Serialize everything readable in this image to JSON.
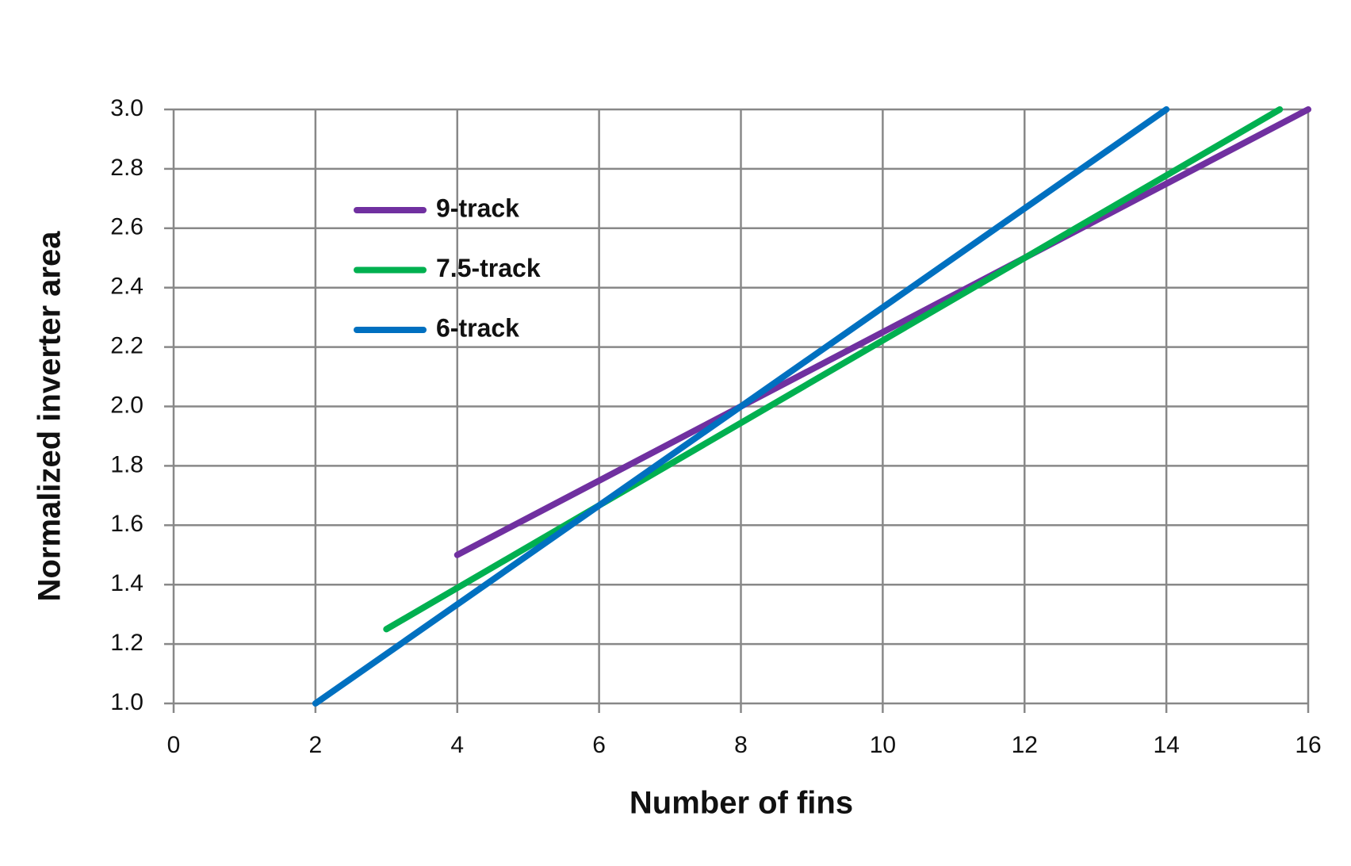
{
  "chart_data": {
    "type": "line",
    "x_label": "Number of fins",
    "y_label": "Normalized inverter area",
    "series": [
      {
        "name": "9-track",
        "color": "#7030a0",
        "x": [
          4,
          16
        ],
        "values": [
          1.5,
          3.0
        ]
      },
      {
        "name": "7.5-track",
        "color": "#00b050",
        "x": [
          3,
          15.6
        ],
        "values": [
          1.25,
          3.0
        ]
      },
      {
        "name": "6-track",
        "color": "#0070c0",
        "x": [
          2,
          14
        ],
        "values": [
          1.0,
          3.0
        ]
      }
    ],
    "xlim": [
      0,
      16
    ],
    "xticks": [
      0,
      2,
      4,
      6,
      8,
      10,
      12,
      14,
      16
    ],
    "ylim": [
      1.0,
      3.0
    ],
    "yticks": [
      {
        "value": 1.0,
        "label": "1.0"
      },
      {
        "value": 1.2,
        "label": "1.2"
      },
      {
        "value": 1.4,
        "label": "1.4"
      },
      {
        "value": 1.6,
        "label": "1.6"
      },
      {
        "value": 1.8,
        "label": "1.8"
      },
      {
        "value": 2.0,
        "label": "2.0"
      },
      {
        "value": 2.2,
        "label": "2.2"
      },
      {
        "value": 2.4,
        "label": "2.4"
      },
      {
        "value": 2.6,
        "label": "2.6"
      },
      {
        "value": 2.8,
        "label": "2.8"
      },
      {
        "value": 3.0,
        "label": "3.0"
      }
    ],
    "grid": true,
    "legend": "upper left"
  }
}
